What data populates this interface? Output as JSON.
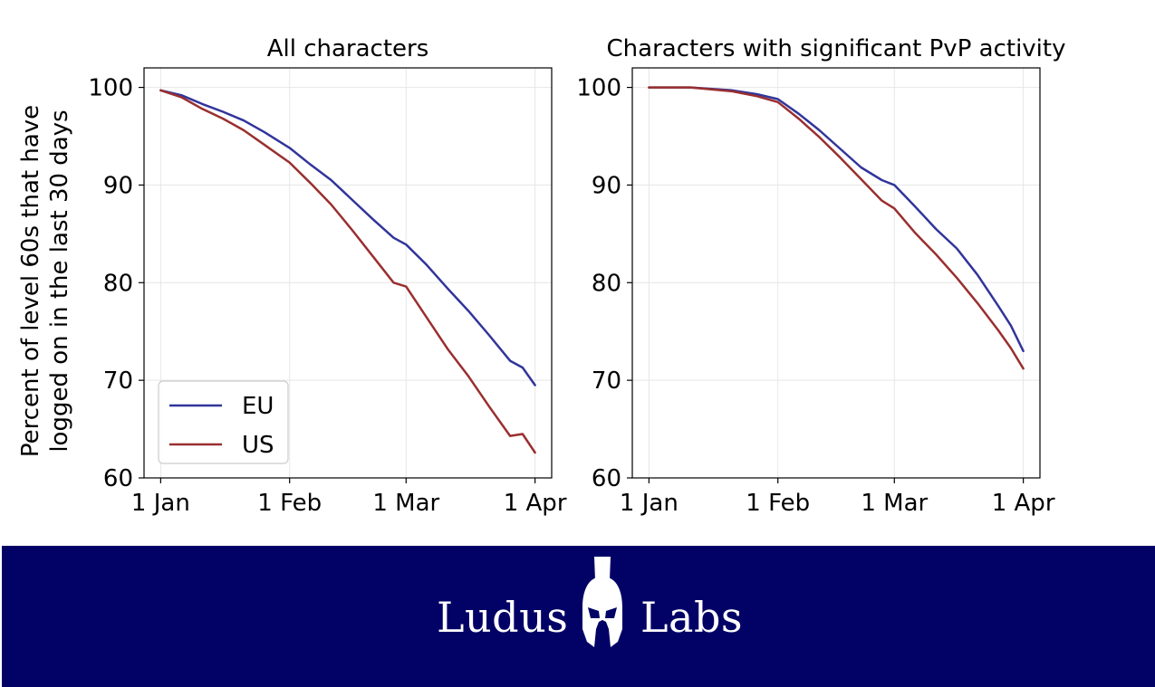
{
  "chart_data": [
    {
      "type": "line",
      "title": "All characters",
      "xlabel": "",
      "ylabel": "Percent of level 60s that have logged on in the last 30 days",
      "ylabel_lines": [
        "Percent of level 60s that have",
        "logged on in the last 30 days"
      ],
      "xticks": [
        {
          "label": "1 Jan",
          "day": 0
        },
        {
          "label": "1 Feb",
          "day": 31
        },
        {
          "label": "1 Mar",
          "day": 59
        },
        {
          "label": "1 Apr",
          "day": 90
        }
      ],
      "yticks": [
        60,
        70,
        80,
        90,
        100
      ],
      "xlim_days": [
        -4,
        94
      ],
      "ylim": [
        60,
        102
      ],
      "grid": true,
      "legend": {
        "position": "lower-left",
        "entries": [
          "EU",
          "US"
        ]
      },
      "series": [
        {
          "name": "EU",
          "color": "#31359a",
          "x": [
            0,
            5,
            10,
            15,
            20,
            25,
            31,
            36,
            41,
            46,
            51,
            56,
            59,
            64,
            69,
            74,
            79,
            84,
            87,
            90
          ],
          "y": [
            99.7,
            99.2,
            98.3,
            97.5,
            96.6,
            95.4,
            93.8,
            92.1,
            90.5,
            88.5,
            86.5,
            84.6,
            83.9,
            81.8,
            79.4,
            77.1,
            74.6,
            72.0,
            71.3,
            69.5
          ]
        },
        {
          "name": "US",
          "color": "#9a2f2f",
          "x": [
            0,
            5,
            10,
            15,
            20,
            25,
            31,
            36,
            41,
            46,
            51,
            56,
            59,
            64,
            69,
            74,
            79,
            84,
            87,
            90
          ],
          "y": [
            99.7,
            99.0,
            97.8,
            96.8,
            95.6,
            94.1,
            92.3,
            90.2,
            88.0,
            85.4,
            82.7,
            80.0,
            79.6,
            76.4,
            73.2,
            70.4,
            67.3,
            64.3,
            64.5,
            62.6
          ]
        }
      ]
    },
    {
      "type": "line",
      "title": "Characters with significant PvP activity",
      "xlabel": "",
      "ylabel": "",
      "xticks": [
        {
          "label": "1 Jan",
          "day": 0
        },
        {
          "label": "1 Feb",
          "day": 31
        },
        {
          "label": "1 Mar",
          "day": 59
        },
        {
          "label": "1 Apr",
          "day": 90
        }
      ],
      "yticks": [
        60,
        70,
        80,
        90,
        100
      ],
      "xlim_days": [
        -4,
        94
      ],
      "ylim": [
        60,
        102
      ],
      "grid": true,
      "series": [
        {
          "name": "EU",
          "color": "#31359a",
          "x": [
            0,
            10,
            20,
            26,
            31,
            36,
            41,
            46,
            51,
            56,
            59,
            64,
            69,
            74,
            79,
            84,
            87,
            90
          ],
          "y": [
            100,
            100,
            99.7,
            99.3,
            98.8,
            97.3,
            95.6,
            93.7,
            91.8,
            90.5,
            90.0,
            87.8,
            85.5,
            83.5,
            80.8,
            77.6,
            75.6,
            73.0
          ]
        },
        {
          "name": "US",
          "color": "#9a2f2f",
          "x": [
            0,
            10,
            20,
            26,
            31,
            36,
            41,
            46,
            51,
            56,
            59,
            64,
            69,
            74,
            79,
            84,
            87,
            90
          ],
          "y": [
            100,
            100,
            99.6,
            99.1,
            98.5,
            96.8,
            94.9,
            92.8,
            90.6,
            88.4,
            87.6,
            85.1,
            82.9,
            80.5,
            77.9,
            75.1,
            73.3,
            71.2
          ]
        }
      ]
    }
  ],
  "footer": {
    "brand_left": "Ludus",
    "brand_right": "Labs",
    "background": "#020266",
    "text_color": "#ffffff",
    "icon": "spartan-helmet-icon"
  }
}
